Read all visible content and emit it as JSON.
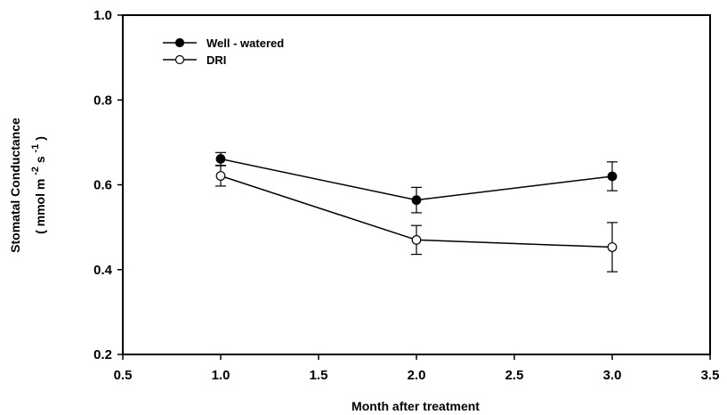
{
  "chart_data": {
    "type": "line",
    "xlabel": "Month after treatment",
    "ylabel_line1": "Stomatal Conductance",
    "ylabel_line2_parts": [
      "( mmol m",
      "-2",
      "s",
      "-1",
      " )"
    ],
    "xlim": [
      0.5,
      3.5
    ],
    "ylim": [
      0.2,
      1.0
    ],
    "xticks": [
      "0.5",
      "1.0",
      "1.5",
      "2.0",
      "2.5",
      "3.0",
      "3.5"
    ],
    "yticks": [
      "0.2",
      "0.4",
      "0.6",
      "0.8",
      "1.0"
    ],
    "grid": false,
    "legend_position": "top-left",
    "series": [
      {
        "name": "Well - watered",
        "marker": "filled-circle",
        "color": "#000000",
        "x": [
          1.0,
          2.0,
          3.0
        ],
        "y": [
          0.661,
          0.564,
          0.62
        ],
        "err": [
          0.015,
          0.03,
          0.034
        ]
      },
      {
        "name": "DRI",
        "marker": "open-circle",
        "color": "#000000",
        "x": [
          1.0,
          2.0,
          3.0
        ],
        "y": [
          0.621,
          0.47,
          0.453
        ],
        "err": [
          0.024,
          0.034,
          0.058
        ]
      }
    ]
  }
}
